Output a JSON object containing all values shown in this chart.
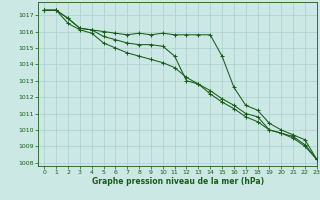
{
  "title": "Graphe pression niveau de la mer (hPa)",
  "background_color": "#cce8e4",
  "grid_color": "#aad0cc",
  "line_color": "#1a5c1a",
  "xlim": [
    -0.5,
    23
  ],
  "ylim": [
    1007.8,
    1017.8
  ],
  "yticks": [
    1008,
    1009,
    1010,
    1011,
    1012,
    1013,
    1014,
    1015,
    1016,
    1017
  ],
  "xticks": [
    0,
    1,
    2,
    3,
    4,
    5,
    6,
    7,
    8,
    9,
    10,
    11,
    12,
    13,
    14,
    15,
    16,
    17,
    18,
    19,
    20,
    21,
    22,
    23
  ],
  "series": [
    {
      "x": [
        0,
        1,
        2,
        3,
        4,
        5,
        6,
        7,
        8,
        9,
        10,
        11,
        12,
        13,
        14,
        15,
        16,
        17,
        18,
        19,
        20,
        21,
        22,
        23
      ],
      "y": [
        1017.3,
        1017.3,
        1016.8,
        1016.2,
        1016.1,
        1016.0,
        1015.9,
        1015.8,
        1015.9,
        1015.8,
        1015.9,
        1015.8,
        1015.8,
        1015.8,
        1015.8,
        1014.5,
        1012.6,
        1011.5,
        1011.2,
        1010.4,
        1010.0,
        1009.7,
        1009.4,
        1008.2
      ]
    },
    {
      "x": [
        0,
        1,
        2,
        3,
        4,
        5,
        6,
        7,
        8,
        9,
        10,
        11,
        12,
        13,
        14,
        15,
        16,
        17,
        18,
        19,
        20,
        21,
        22,
        23
      ],
      "y": [
        1017.3,
        1017.3,
        1016.8,
        1016.2,
        1016.1,
        1015.7,
        1015.5,
        1015.3,
        1015.2,
        1015.2,
        1015.1,
        1014.5,
        1013.0,
        1012.8,
        1012.4,
        1011.9,
        1011.5,
        1011.0,
        1010.8,
        1010.0,
        1009.8,
        1009.5,
        1009.0,
        1008.2
      ]
    },
    {
      "x": [
        0,
        1,
        2,
        3,
        4,
        5,
        6,
        7,
        8,
        9,
        10,
        11,
        12,
        13,
        14,
        15,
        16,
        17,
        18,
        19,
        20,
        21,
        22,
        23
      ],
      "y": [
        1017.3,
        1017.3,
        1016.5,
        1016.1,
        1015.9,
        1015.3,
        1015.0,
        1014.7,
        1014.5,
        1014.3,
        1014.1,
        1013.8,
        1013.2,
        1012.8,
        1012.2,
        1011.7,
        1011.3,
        1010.8,
        1010.5,
        1010.0,
        1009.8,
        1009.6,
        1009.1,
        1008.2
      ]
    }
  ]
}
